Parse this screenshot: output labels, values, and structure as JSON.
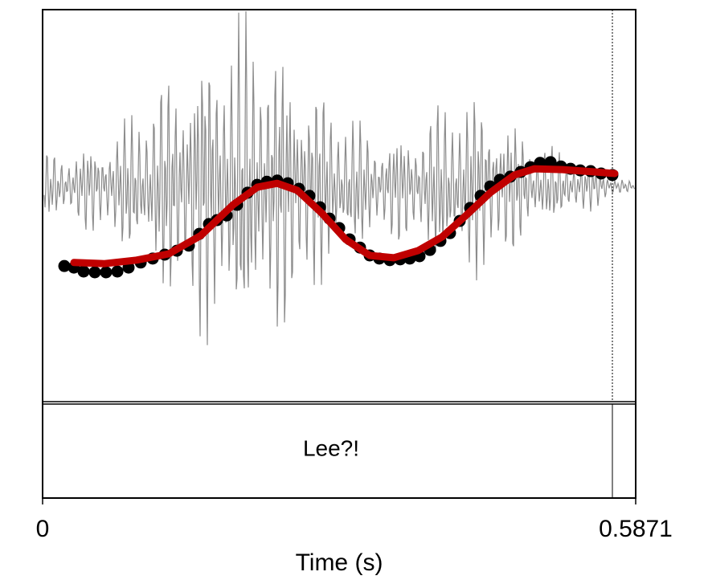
{
  "chart_data": {
    "type": "line",
    "xlabel": "Time (s)",
    "annotation": "Lee?!",
    "xlim": [
      0,
      0.5871
    ],
    "xticks": [
      0,
      0.5871
    ],
    "ylim": [
      0,
      100
    ],
    "series": [
      {
        "color": "#000000",
        "marker": "dot",
        "x": [
          0.0215,
          0.031,
          0.0406,
          0.0517,
          0.0628,
          0.074,
          0.0851,
          0.0971,
          0.109,
          0.1209,
          0.1329,
          0.1448,
          0.1551,
          0.1647,
          0.1726,
          0.1822,
          0.1925,
          0.2029,
          0.2124,
          0.222,
          0.2323,
          0.2427,
          0.2538,
          0.2641,
          0.2745,
          0.284,
          0.2936,
          0.3039,
          0.3142,
          0.3238,
          0.3333,
          0.3437,
          0.354,
          0.3635,
          0.3731,
          0.3834,
          0.3938,
          0.4033,
          0.4129,
          0.4232,
          0.4336,
          0.4431,
          0.4527,
          0.463,
          0.4733,
          0.4829,
          0.4924,
          0.5028,
          0.5131,
          0.5226,
          0.5322,
          0.5425,
          0.5529,
          0.564
        ],
        "values": [
          34.6,
          34.2,
          33.2,
          33.0,
          33.0,
          33.2,
          34.2,
          35.5,
          36.5,
          37.5,
          38.5,
          39.8,
          42.8,
          45.3,
          46.3,
          47.5,
          50.2,
          53.3,
          55.3,
          56.1,
          56.4,
          55.7,
          54.3,
          52.5,
          49.6,
          46.7,
          44.3,
          41.4,
          39.3,
          37.3,
          36.5,
          36.1,
          36.3,
          36.5,
          37.1,
          38.7,
          41.0,
          43.0,
          46.1,
          49.4,
          52.5,
          54.9,
          56.6,
          57.4,
          58.6,
          59.8,
          60.9,
          61.1,
          60.0,
          59.4,
          59.0,
          58.8,
          58.2,
          57.8
        ]
      },
      {
        "color": "#c00000",
        "marker": "line",
        "x": [
          0.031,
          0.0613,
          0.0931,
          0.1249,
          0.1567,
          0.1885,
          0.2124,
          0.2323,
          0.2522,
          0.276,
          0.2999,
          0.3238,
          0.3476,
          0.3715,
          0.3954,
          0.4192,
          0.4431,
          0.467,
          0.4869,
          0.5147,
          0.5465,
          0.5664
        ],
        "values": [
          35.5,
          35.2,
          36.1,
          37.7,
          42.4,
          50.2,
          54.7,
          55.7,
          53.9,
          48.2,
          41.4,
          37.3,
          36.7,
          38.5,
          42.0,
          47.5,
          53.3,
          57.8,
          59.4,
          59.2,
          58.6,
          58.2
        ]
      }
    ]
  }
}
